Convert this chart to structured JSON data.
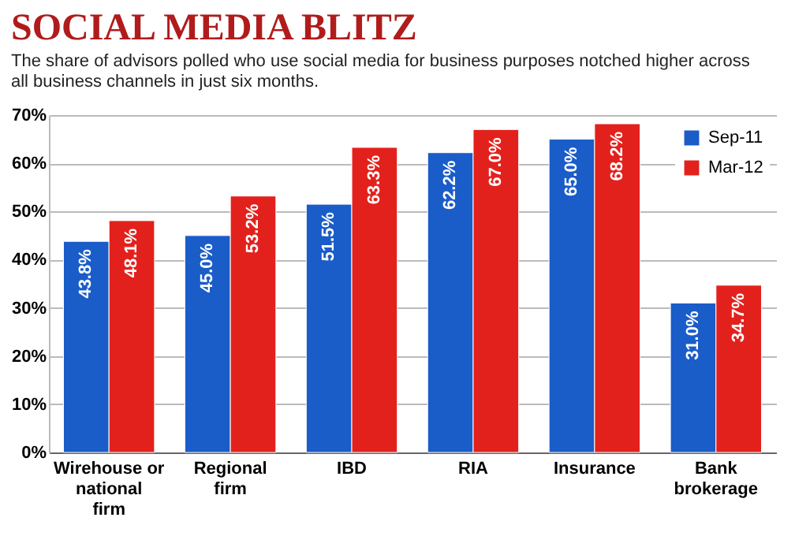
{
  "chart_data": {
    "type": "bar",
    "title": "SOCIAL MEDIA BLITZ",
    "subtitle": "The share of advisors polled who use social media for business purposes notched higher across all business channels in just six months.",
    "categories": [
      "Wirehouse or national firm",
      "Regional firm",
      "IBD",
      "RIA",
      "Insurance",
      "Bank brokerage"
    ],
    "series": [
      {
        "name": "Sep-11",
        "color": "#1a5cc8",
        "values": [
          43.8,
          45.0,
          51.5,
          62.2,
          65.0,
          31.0
        ],
        "value_labels": [
          "43.8%",
          "45.0%",
          "51.5%",
          "62.2%",
          "65.0%",
          "31.0%"
        ]
      },
      {
        "name": "Mar-12",
        "color": "#e3211c",
        "values": [
          48.1,
          53.2,
          63.3,
          67.0,
          68.2,
          34.7
        ],
        "value_labels": [
          "48.1%",
          "53.2%",
          "63.3%",
          "67.0%",
          "68.2%",
          "34.7%"
        ]
      }
    ],
    "ylim": [
      0,
      70
    ],
    "yticks": [
      {
        "value": 0,
        "label": "0%"
      },
      {
        "value": 10,
        "label": "10%"
      },
      {
        "value": 20,
        "label": "20%"
      },
      {
        "value": 30,
        "label": "30%"
      },
      {
        "value": 40,
        "label": "40%"
      },
      {
        "value": 50,
        "label": "50%"
      },
      {
        "value": 60,
        "label": "60%"
      },
      {
        "value": 70,
        "label": "70%"
      }
    ],
    "grid": "y",
    "legend": "top right"
  }
}
